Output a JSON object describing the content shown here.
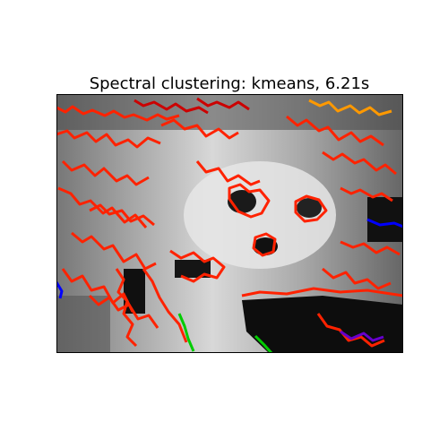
{
  "chart_data": {
    "type": "heatmap",
    "title": "Spectral clustering: kmeans, 6.21s",
    "xlabel": "",
    "ylabel": "",
    "axis_ticks": "none",
    "image": "grayscale raccoon-face photo with cluster contours overlaid",
    "contour_colors": [
      "#ff2200",
      "#cc0000",
      "#ff9900",
      "#00cc00",
      "#0000ff",
      "#6600cc"
    ],
    "grid": false
  }
}
